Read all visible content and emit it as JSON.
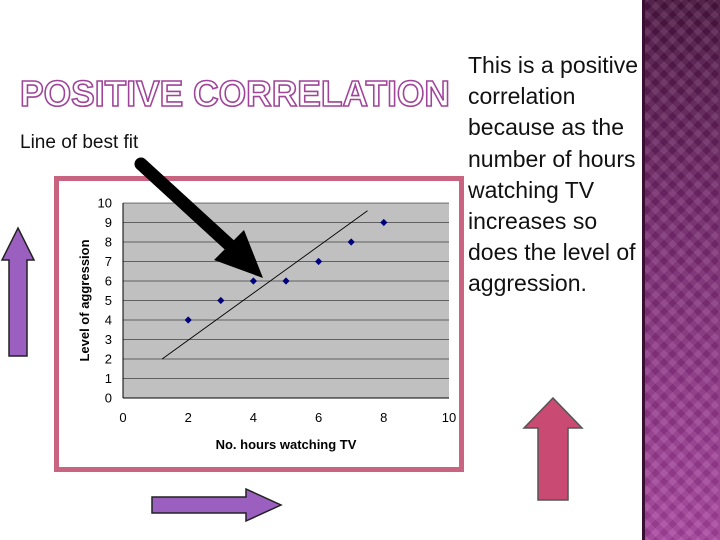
{
  "slide": {
    "title": "POSITIVE CORRELATION",
    "subtitle": "Line of best fit",
    "body_text": "This is a positive correlation because as the number of hours watching TV increases so does the level of aggression."
  },
  "colors": {
    "frame": "#c8647f",
    "plot_bg": "#c0c0c0",
    "points": "#00007a",
    "arrow_left": "#9b5fc0",
    "arrow_bottom": "#9b5fc0",
    "arrow_right": "#c94a72",
    "title_outline": "#a0449a"
  },
  "icons": {
    "pointer": "black-arrow-icon",
    "up_left": "up-arrow-icon",
    "right_bottom": "right-arrow-icon",
    "up_right": "up-arrow-icon"
  },
  "chart_data": {
    "type": "scatter",
    "xlabel": "No. hours watching TV",
    "ylabel": "Level of aggression",
    "xlim": [
      0,
      10
    ],
    "ylim": [
      0,
      10
    ],
    "x_ticks": [
      0,
      2,
      4,
      6,
      8,
      10
    ],
    "y_ticks": [
      0,
      1,
      2,
      3,
      4,
      5,
      6,
      7,
      8,
      9,
      10
    ],
    "grid": true,
    "points": [
      {
        "x": 2,
        "y": 4
      },
      {
        "x": 3,
        "y": 5
      },
      {
        "x": 4,
        "y": 6
      },
      {
        "x": 5,
        "y": 6
      },
      {
        "x": 6,
        "y": 7
      },
      {
        "x": 7,
        "y": 8
      },
      {
        "x": 8,
        "y": 9
      }
    ],
    "best_fit": {
      "x1": 1.2,
      "y1": 2,
      "x2": 7.5,
      "y2": 9.6
    }
  }
}
